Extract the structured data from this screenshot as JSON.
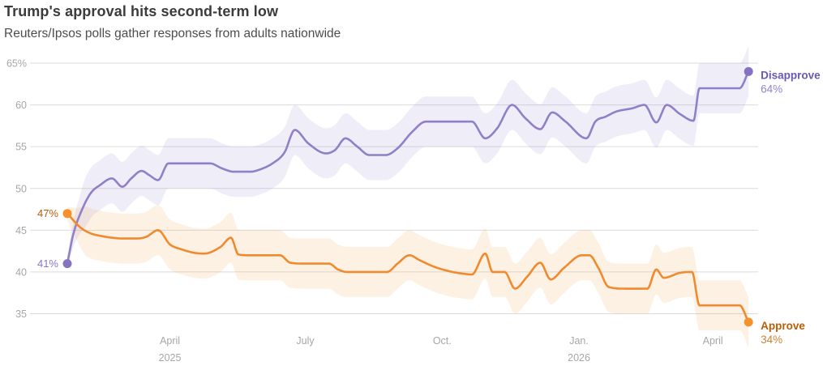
{
  "header": {
    "title": "Trump's approval hits second-term low",
    "subtitle": "Reuters/Ipsos polls gather responses from adults nationwide"
  },
  "chart_data": {
    "type": "line",
    "title": "Trump's approval hits second-term low",
    "subtitle": "Reuters/Ipsos polls gather responses from adults nationwide",
    "grid": "horizontal-only",
    "grid_color": "#dcdcdc",
    "axis_text_color": "#a6a6a6",
    "y_axis": {
      "min": 35,
      "max": 65,
      "ticks": [
        {
          "value": 65,
          "label": "65%"
        },
        {
          "value": 60,
          "label": "60"
        },
        {
          "value": 55,
          "label": "55"
        },
        {
          "value": 50,
          "label": "50"
        },
        {
          "value": 45,
          "label": "45"
        },
        {
          "value": 40,
          "label": "40"
        },
        {
          "value": 35,
          "label": "35"
        }
      ]
    },
    "x_axis": {
      "start_date": "2025-01-22",
      "end_date": "2026-04-26",
      "ticks": [
        {
          "date": "2025-04-01",
          "label": "April",
          "sublabel": "2025"
        },
        {
          "date": "2025-07-01",
          "label": "July",
          "sublabel": ""
        },
        {
          "date": "2025-10-01",
          "label": "Oct.",
          "sublabel": ""
        },
        {
          "date": "2026-01-01",
          "label": "Jan.",
          "sublabel": "2026"
        },
        {
          "date": "2026-04-01",
          "label": "April",
          "sublabel": ""
        }
      ]
    },
    "band_halfwidth_pts": 3,
    "series": [
      {
        "name": "Disapprove",
        "line_color": "#9080c8",
        "dot_color": "#8672c2",
        "band_color": "rgba(144,128,200,0.14)",
        "start_label": "41%",
        "start_label_color": "#8577c6",
        "end_name_label": "Disapprove",
        "end_name_color": "#6a58b5",
        "end_value_label": "64%",
        "end_value_color": "#9184cb",
        "points": [
          [
            "2025-01-22",
            41
          ],
          [
            "2025-01-26",
            44.5
          ],
          [
            "2025-02-01",
            47.5
          ],
          [
            "2025-02-07",
            49.5
          ],
          [
            "2025-02-13",
            50.4
          ],
          [
            "2025-02-21",
            51.2
          ],
          [
            "2025-02-28",
            50.2
          ],
          [
            "2025-03-06",
            51.2
          ],
          [
            "2025-03-13",
            52.1
          ],
          [
            "2025-03-18",
            51.6
          ],
          [
            "2025-03-24",
            51.0
          ],
          [
            "2025-03-31",
            53.0
          ],
          [
            "2025-04-07",
            53.0
          ],
          [
            "2025-04-14",
            53.0
          ],
          [
            "2025-04-21",
            53.0
          ],
          [
            "2025-04-28",
            53.0
          ],
          [
            "2025-05-06",
            52.4
          ],
          [
            "2025-05-14",
            52.0
          ],
          [
            "2025-05-25",
            52.0
          ],
          [
            "2025-06-01",
            52.3
          ],
          [
            "2025-06-09",
            53.0
          ],
          [
            "2025-06-17",
            54.3
          ],
          [
            "2025-06-24",
            57.0
          ],
          [
            "2025-07-03",
            55.4
          ],
          [
            "2025-07-15",
            54.2
          ],
          [
            "2025-07-21",
            54.6
          ],
          [
            "2025-07-28",
            56.0
          ],
          [
            "2025-08-05",
            55.0
          ],
          [
            "2025-08-13",
            54.0
          ],
          [
            "2025-08-24",
            54.0
          ],
          [
            "2025-09-01",
            54.8
          ],
          [
            "2025-09-11",
            56.8
          ],
          [
            "2025-09-20",
            58.0
          ],
          [
            "2025-10-01",
            58.0
          ],
          [
            "2025-10-10",
            58.0
          ],
          [
            "2025-10-21",
            58.0
          ],
          [
            "2025-10-30",
            56.0
          ],
          [
            "2025-11-07",
            57.2
          ],
          [
            "2025-11-17",
            60.0
          ],
          [
            "2025-11-26",
            58.4
          ],
          [
            "2025-12-06",
            57.1
          ],
          [
            "2025-12-14",
            59.1
          ],
          [
            "2025-12-23",
            58.0
          ],
          [
            "2026-01-06",
            56.0
          ],
          [
            "2026-01-12",
            58.0
          ],
          [
            "2026-01-19",
            58.6
          ],
          [
            "2026-01-26",
            59.2
          ],
          [
            "2026-02-06",
            59.6
          ],
          [
            "2026-02-14",
            60.0
          ],
          [
            "2026-02-22",
            57.9
          ],
          [
            "2026-03-01",
            60.0
          ],
          [
            "2026-03-10",
            58.9
          ],
          [
            "2026-03-19",
            58.1
          ],
          [
            "2026-03-23",
            62.0
          ],
          [
            "2026-04-01",
            62.0
          ],
          [
            "2026-04-10",
            62.0
          ],
          [
            "2026-04-19",
            62.0
          ],
          [
            "2026-04-25",
            64.0
          ]
        ]
      },
      {
        "name": "Approve",
        "line_color": "#f08a2e",
        "dot_color": "#f5922e",
        "band_color": "rgba(243,146,46,0.13)",
        "start_label": "47%",
        "start_label_color": "#b45c0e",
        "end_name_label": "Approve",
        "end_name_color": "#bc5d04",
        "end_value_label": "34%",
        "end_value_color": "#cd8138",
        "points": [
          [
            "2025-01-22",
            47
          ],
          [
            "2025-01-31",
            45.3
          ],
          [
            "2025-02-07",
            44.6
          ],
          [
            "2025-02-14",
            44.3
          ],
          [
            "2025-02-21",
            44.1
          ],
          [
            "2025-03-01",
            44.0
          ],
          [
            "2025-03-09",
            44.0
          ],
          [
            "2025-03-16",
            44.2
          ],
          [
            "2025-03-24",
            45.0
          ],
          [
            "2025-04-01",
            43.3
          ],
          [
            "2025-04-09",
            42.7
          ],
          [
            "2025-04-17",
            42.3
          ],
          [
            "2025-04-24",
            42.2
          ],
          [
            "2025-05-05",
            43.0
          ],
          [
            "2025-05-12",
            44.1
          ],
          [
            "2025-05-17",
            42.1
          ],
          [
            "2025-05-24",
            42.0
          ],
          [
            "2025-06-05",
            42.0
          ],
          [
            "2025-06-14",
            42.0
          ],
          [
            "2025-06-21",
            41.1
          ],
          [
            "2025-07-01",
            41.0
          ],
          [
            "2025-07-17",
            41.0
          ],
          [
            "2025-07-23",
            40.3
          ],
          [
            "2025-07-29",
            40.0
          ],
          [
            "2025-08-12",
            40.0
          ],
          [
            "2025-08-25",
            40.0
          ],
          [
            "2025-09-01",
            41.0
          ],
          [
            "2025-09-09",
            42.0
          ],
          [
            "2025-09-16",
            41.4
          ],
          [
            "2025-09-26",
            40.6
          ],
          [
            "2025-10-08",
            40.0
          ],
          [
            "2025-10-15",
            39.8
          ],
          [
            "2025-10-21",
            39.7
          ],
          [
            "2025-10-30",
            42.2
          ],
          [
            "2025-11-04",
            40.0
          ],
          [
            "2025-11-12",
            40.0
          ],
          [
            "2025-11-19",
            38.0
          ],
          [
            "2025-11-27",
            39.4
          ],
          [
            "2025-12-06",
            41.1
          ],
          [
            "2025-12-13",
            39.1
          ],
          [
            "2025-12-22",
            40.5
          ],
          [
            "2026-01-03",
            42.0
          ],
          [
            "2026-01-08",
            42.0
          ],
          [
            "2026-01-14",
            40.5
          ],
          [
            "2026-01-21",
            38.2
          ],
          [
            "2026-02-01",
            38.0
          ],
          [
            "2026-02-10",
            38.0
          ],
          [
            "2026-02-16",
            38.0
          ],
          [
            "2026-02-22",
            40.3
          ],
          [
            "2026-02-27",
            39.3
          ],
          [
            "2026-03-10",
            39.9
          ],
          [
            "2026-03-18",
            40.0
          ],
          [
            "2026-03-23",
            36.0
          ],
          [
            "2026-04-01",
            36.0
          ],
          [
            "2026-04-10",
            36.0
          ],
          [
            "2026-04-19",
            36.0
          ],
          [
            "2026-04-25",
            34.0
          ]
        ]
      }
    ]
  }
}
